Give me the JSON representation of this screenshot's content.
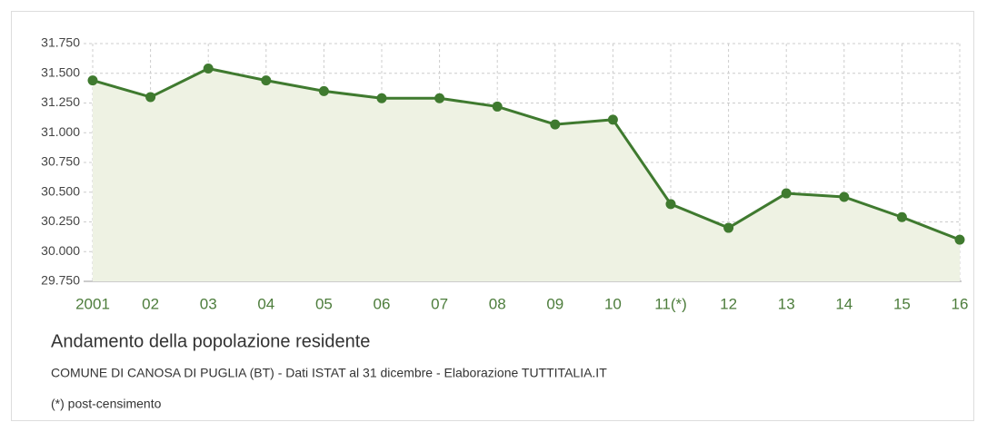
{
  "chart_data": {
    "type": "line",
    "title": "Andamento della popolazione residente",
    "subtitle": "COMUNE DI CANOSA DI PUGLIA (BT) - Dati ISTAT al 31 dicembre - Elaborazione TUTTITALIA.IT",
    "note": "(*) post-censimento",
    "categories": [
      "2001",
      "02",
      "03",
      "04",
      "05",
      "06",
      "07",
      "08",
      "09",
      "10",
      "11(*)",
      "12",
      "13",
      "14",
      "15",
      "16"
    ],
    "series": [
      {
        "name": "Popolazione residente",
        "color": "#3f7a2f",
        "values": [
          31440,
          31300,
          31540,
          31440,
          31350,
          31290,
          31290,
          31220,
          31070,
          31110,
          30400,
          30200,
          30490,
          30460,
          30290,
          30100
        ]
      }
    ],
    "area_color": "#eef2e3",
    "ylim": [
      29750,
      31750
    ],
    "yticks": [
      {
        "value": 29750,
        "label": "29.750"
      },
      {
        "value": 30000,
        "label": "30.000"
      },
      {
        "value": 30250,
        "label": "30.250"
      },
      {
        "value": 30500,
        "label": "30.500"
      },
      {
        "value": 30750,
        "label": "30.750"
      },
      {
        "value": 31000,
        "label": "31.000"
      },
      {
        "value": 31250,
        "label": "31.250"
      },
      {
        "value": 31500,
        "label": "31.500"
      },
      {
        "value": 31750,
        "label": "31.750"
      }
    ],
    "grid": true
  }
}
